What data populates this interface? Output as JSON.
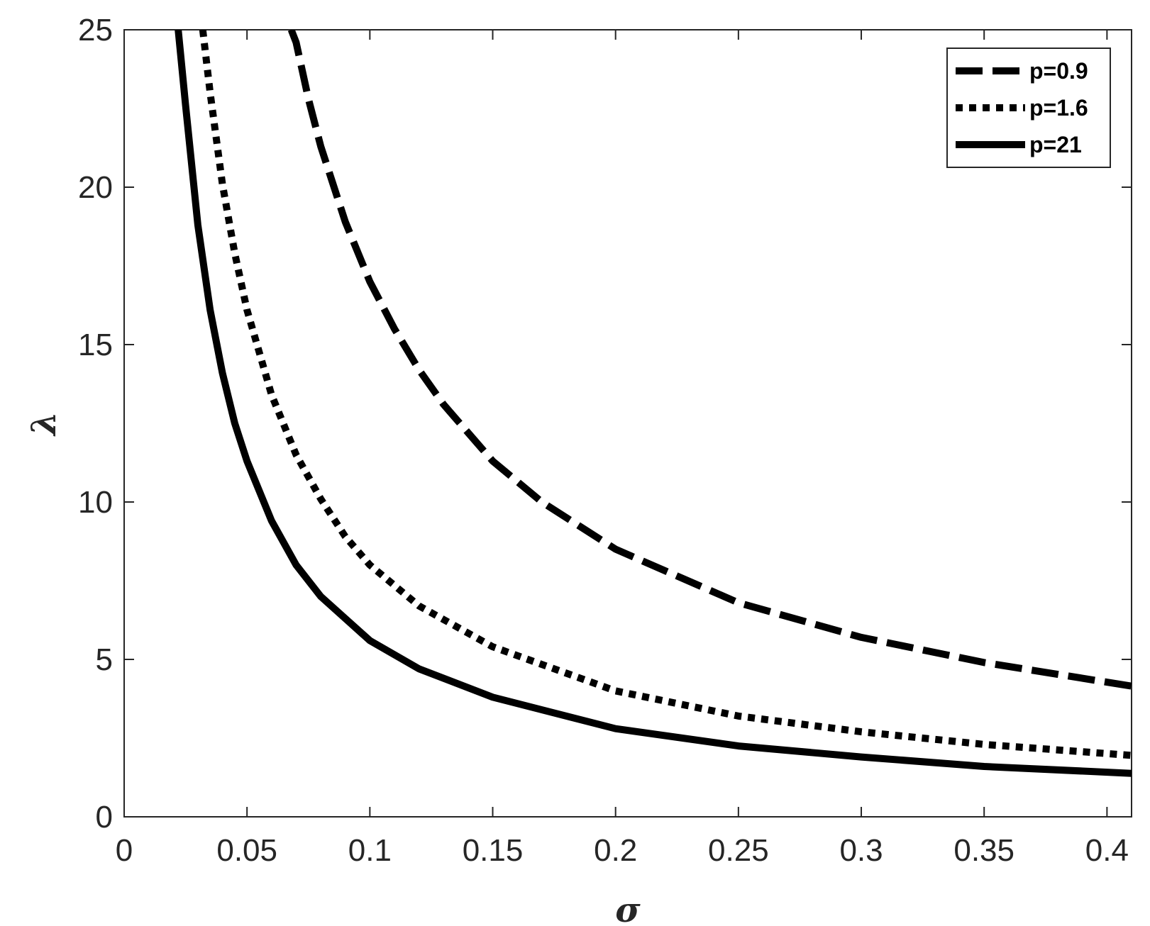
{
  "chart_data": {
    "type": "line",
    "title": "",
    "xlabel": "σ",
    "ylabel": "λ",
    "xlim": [
      0,
      0.41
    ],
    "ylim": [
      0,
      25
    ],
    "x_ticks": [
      "0",
      "0.05",
      "0.1",
      "0.15",
      "0.2",
      "0.25",
      "0.3",
      "0.35",
      "0.4"
    ],
    "y_ticks": [
      "0",
      "5",
      "10",
      "15",
      "20",
      "25"
    ],
    "grid": false,
    "legend_position": "top-right",
    "series": [
      {
        "name": "p=0.9",
        "style": "dashed",
        "color": "#000000",
        "x": [
          0.068,
          0.07,
          0.075,
          0.08,
          0.09,
          0.1,
          0.11,
          0.12,
          0.13,
          0.15,
          0.17,
          0.2,
          0.25,
          0.3,
          0.35,
          0.41
        ],
        "y": [
          25.0,
          24.6,
          22.8,
          21.3,
          18.9,
          17.0,
          15.5,
          14.2,
          13.1,
          11.3,
          10.0,
          8.5,
          6.8,
          5.7,
          4.9,
          4.15
        ]
      },
      {
        "name": "p=1.6",
        "style": "dotted",
        "color": "#000000",
        "x": [
          0.032,
          0.035,
          0.04,
          0.045,
          0.05,
          0.06,
          0.07,
          0.08,
          0.09,
          0.1,
          0.12,
          0.15,
          0.2,
          0.25,
          0.3,
          0.35,
          0.41
        ],
        "y": [
          25.0,
          23.0,
          20.1,
          17.9,
          16.1,
          13.4,
          11.5,
          10.1,
          8.9,
          8.0,
          6.7,
          5.4,
          4.0,
          3.2,
          2.7,
          2.3,
          1.95
        ]
      },
      {
        "name": "p=21",
        "style": "solid",
        "color": "#000000",
        "x": [
          0.022,
          0.025,
          0.03,
          0.035,
          0.04,
          0.045,
          0.05,
          0.06,
          0.07,
          0.08,
          0.09,
          0.1,
          0.12,
          0.15,
          0.2,
          0.25,
          0.3,
          0.35,
          0.41
        ],
        "y": [
          25.0,
          22.6,
          18.8,
          16.1,
          14.1,
          12.5,
          11.3,
          9.4,
          8.0,
          7.0,
          6.3,
          5.6,
          4.7,
          3.8,
          2.8,
          2.25,
          1.9,
          1.6,
          1.38
        ]
      }
    ]
  }
}
